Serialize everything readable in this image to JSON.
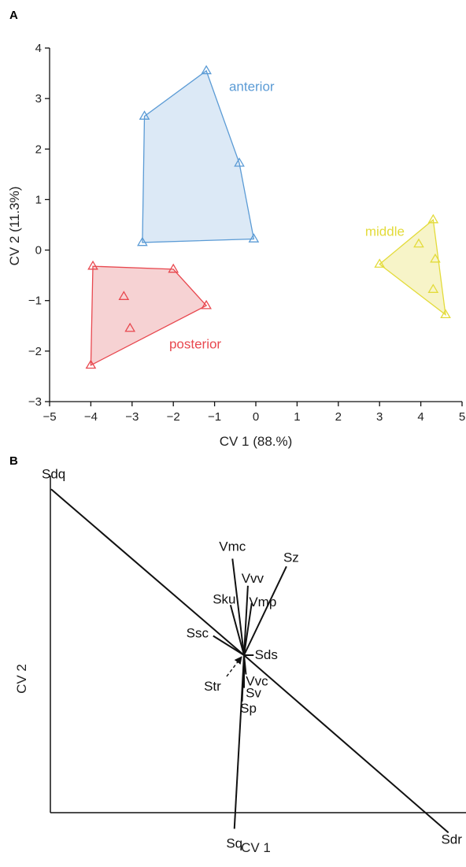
{
  "panel_a": {
    "label": "A",
    "xlabel": "CV 1 (88.%)",
    "ylabel": "CV 2 (11.3%)",
    "x_ticks": [
      "−5",
      "−4",
      "−3",
      "−2",
      "−1",
      "0",
      "1",
      "2",
      "3",
      "4",
      "5"
    ],
    "y_ticks": [
      "4",
      "3",
      "2",
      "1",
      "0",
      "−1",
      "−2",
      "−3"
    ]
  },
  "panel_b": {
    "label": "B",
    "xlabel": "CV 1",
    "ylabel": "CV 2"
  },
  "chart_data": [
    {
      "type": "scatter",
      "xlim": [
        -5,
        5
      ],
      "ylim": [
        -3,
        4
      ],
      "xlabel": "CV 1 (88.%)",
      "ylabel": "CV 2 (11.3%)",
      "marker": "triangle-open",
      "hulls": "filled convex hull per group",
      "series": [
        {
          "name": "anterior",
          "color": "#5b9bd5",
          "fill": "#dce9f6",
          "points": [
            [
              -1.2,
              3.55
            ],
            [
              -2.7,
              2.65
            ],
            [
              -0.4,
              1.72
            ],
            [
              -2.75,
              0.15
            ],
            [
              -0.05,
              0.22
            ]
          ],
          "hull": [
            [
              -1.2,
              3.55
            ],
            [
              -0.4,
              1.72
            ],
            [
              -0.05,
              0.22
            ],
            [
              -2.75,
              0.15
            ],
            [
              -2.7,
              2.65
            ]
          ]
        },
        {
          "name": "posterior",
          "color": "#e8484f",
          "fill": "#f6d2d3",
          "points": [
            [
              -3.95,
              -0.32
            ],
            [
              -2.0,
              -0.38
            ],
            [
              -3.2,
              -0.92
            ],
            [
              -1.2,
              -1.1
            ],
            [
              -3.05,
              -1.55
            ],
            [
              -4.0,
              -2.28
            ]
          ],
          "hull": [
            [
              -3.95,
              -0.32
            ],
            [
              -2.0,
              -0.38
            ],
            [
              -1.2,
              -1.1
            ],
            [
              -4.0,
              -2.28
            ]
          ]
        },
        {
          "name": "middle",
          "color": "#e3db3a",
          "fill": "#f7f4c8",
          "points": [
            [
              4.3,
              0.6
            ],
            [
              3.95,
              0.12
            ],
            [
              4.35,
              -0.18
            ],
            [
              3.0,
              -0.28
            ],
            [
              4.3,
              -0.78
            ],
            [
              4.6,
              -1.28
            ]
          ],
          "hull": [
            [
              4.3,
              0.6
            ],
            [
              4.6,
              -1.28
            ],
            [
              3.0,
              -0.28
            ]
          ]
        }
      ]
    },
    {
      "type": "biplot",
      "xlabel": "CV 1",
      "ylabel": "CV 2",
      "origin_label": "",
      "vectors": [
        {
          "label": "Sdq",
          "x": -1.0,
          "y": 0.86
        },
        {
          "label": "Sdr",
          "x": 1.06,
          "y": -0.92
        },
        {
          "label": "Vmc",
          "x": -0.06,
          "y": 0.5
        },
        {
          "label": "Sz",
          "x": 0.22,
          "y": 0.46
        },
        {
          "label": "Vvv",
          "x": 0.02,
          "y": 0.36
        },
        {
          "label": "Vmp",
          "x": 0.04,
          "y": 0.27
        },
        {
          "label": "Sku",
          "x": -0.07,
          "y": 0.26
        },
        {
          "label": "Ssc",
          "x": -0.16,
          "y": 0.1
        },
        {
          "label": "Sds",
          "x": 0.05,
          "y": 0.0
        },
        {
          "label": "Vvc",
          "x": 0.01,
          "y": -0.1
        },
        {
          "label": "Sv",
          "x": 0.0,
          "y": -0.17
        },
        {
          "label": "Sp",
          "x": -0.01,
          "y": -0.24
        },
        {
          "label": "Sq",
          "x": -0.05,
          "y": -0.9
        },
        {
          "label": "Str",
          "x": -0.09,
          "y": -0.11,
          "style": "dashed-arrow"
        }
      ]
    }
  ]
}
